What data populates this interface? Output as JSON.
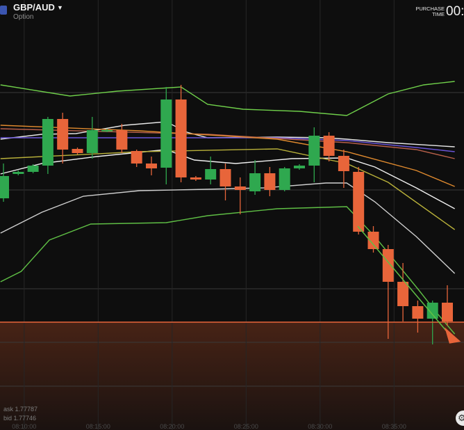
{
  "header": {
    "pair": "GBP/AUD",
    "pair_icon": "caret-down-icon",
    "flag_icon": "gb-au-flag-icon",
    "subtitle": "Option",
    "purchase_time_label_line1": "PURCHASE",
    "purchase_time_label_line2": "TIME",
    "purchase_time_value": "00:"
  },
  "quotes": {
    "ask": "ask 1.77787",
    "bid": "bid 1.77746"
  },
  "time_axis": [
    "08:10:00",
    "08:15:00",
    "08:20:00",
    "08:25:00",
    "08:30:00",
    "08:35:00"
  ],
  "colors": {
    "bull": "#2fa84f",
    "bear": "#e8653a",
    "current_price_line": "#e8653a",
    "background": "#0e0e0e"
  },
  "settings_icon": "gear-icon",
  "chart_data": {
    "type": "candlestick",
    "current_price": 1.77746,
    "ylim": [
      1.77591,
      1.78209
    ],
    "candles": [
      {
        "o": 1.77924,
        "c": 1.77956,
        "h": 1.77974,
        "l": 1.77919
      },
      {
        "o": 1.77959,
        "c": 1.77962,
        "h": 1.77964,
        "l": 1.77957
      },
      {
        "o": 1.77962,
        "c": 1.77971,
        "h": 1.77973,
        "l": 1.7796
      },
      {
        "o": 1.77971,
        "c": 1.78038,
        "h": 1.78041,
        "l": 1.77959
      },
      {
        "o": 1.78038,
        "c": 1.77994,
        "h": 1.78047,
        "l": 1.77974
      },
      {
        "o": 1.77995,
        "c": 1.77989,
        "h": 1.77997,
        "l": 1.77987
      },
      {
        "o": 1.77989,
        "c": 1.78022,
        "h": 1.78041,
        "l": 1.77981
      },
      {
        "o": 1.78021,
        "c": 1.78022,
        "h": 1.78024,
        "l": 1.78019
      },
      {
        "o": 1.78022,
        "c": 1.77994,
        "h": 1.78031,
        "l": 1.77989
      },
      {
        "o": 1.77992,
        "c": 1.77974,
        "h": 1.77994,
        "l": 1.77969
      },
      {
        "o": 1.77974,
        "c": 1.77967,
        "h": 1.77984,
        "l": 1.77957
      },
      {
        "o": 1.77968,
        "c": 1.78066,
        "h": 1.78084,
        "l": 1.77944
      },
      {
        "o": 1.78066,
        "c": 1.77954,
        "h": 1.78087,
        "l": 1.77947
      },
      {
        "o": 1.77954,
        "c": 1.77951,
        "h": 1.77956,
        "l": 1.77949
      },
      {
        "o": 1.77951,
        "c": 1.77966,
        "h": 1.77984,
        "l": 1.77944
      },
      {
        "o": 1.77966,
        "c": 1.77941,
        "h": 1.77974,
        "l": 1.77921
      },
      {
        "o": 1.77941,
        "c": 1.77936,
        "h": 1.77954,
        "l": 1.77901
      },
      {
        "o": 1.77934,
        "c": 1.7796,
        "h": 1.77979,
        "l": 1.77929
      },
      {
        "o": 1.7796,
        "c": 1.77936,
        "h": 1.77969,
        "l": 1.77927
      },
      {
        "o": 1.77936,
        "c": 1.77967,
        "h": 1.77969,
        "l": 1.77934
      },
      {
        "o": 1.77967,
        "c": 1.77971,
        "h": 1.77973,
        "l": 1.77965
      },
      {
        "o": 1.77971,
        "c": 1.78014,
        "h": 1.78026,
        "l": 1.77947
      },
      {
        "o": 1.78014,
        "c": 1.77985,
        "h": 1.78019,
        "l": 1.77977
      },
      {
        "o": 1.77985,
        "c": 1.77963,
        "h": 1.77994,
        "l": 1.77939
      },
      {
        "o": 1.77962,
        "c": 1.77876,
        "h": 1.77969,
        "l": 1.77872
      },
      {
        "o": 1.77876,
        "c": 1.77851,
        "h": 1.77884,
        "l": 1.77846
      },
      {
        "o": 1.77851,
        "c": 1.77804,
        "h": 1.77857,
        "l": 1.77722
      },
      {
        "o": 1.77804,
        "c": 1.77769,
        "h": 1.77831,
        "l": 1.77747
      },
      {
        "o": 1.77769,
        "c": 1.77751,
        "h": 1.77777,
        "l": 1.77731
      },
      {
        "o": 1.77751,
        "c": 1.77774,
        "h": 1.77777,
        "l": 1.77714
      },
      {
        "o": 1.77774,
        "c": 1.77747,
        "h": 1.77799,
        "l": 1.77741
      }
    ],
    "indicators": [
      {
        "color": "#6fcf4a",
        "points": [
          [
            -0.2,
            1.78087
          ],
          [
            4.5,
            1.78071
          ],
          [
            7.7,
            1.78078
          ],
          [
            12,
            1.78084
          ],
          [
            13.8,
            1.78059
          ],
          [
            16.2,
            1.78052
          ],
          [
            20,
            1.78049
          ],
          [
            23.2,
            1.78043
          ],
          [
            26,
            1.78074
          ],
          [
            28.4,
            1.78087
          ],
          [
            30.5,
            1.78092
          ]
        ]
      },
      {
        "color": "#e6e6e6",
        "points": [
          [
            -0.2,
            1.78009
          ],
          [
            2.6,
            1.78016
          ],
          [
            4.9,
            1.78017
          ],
          [
            8.2,
            1.78029
          ],
          [
            11,
            1.78034
          ],
          [
            12.4,
            1.78019
          ],
          [
            13.8,
            1.78011
          ],
          [
            18.5,
            1.78012
          ],
          [
            21.8,
            1.78011
          ],
          [
            23.2,
            1.78009
          ],
          [
            26,
            1.78004
          ],
          [
            30.5,
            1.77998
          ]
        ]
      },
      {
        "color": "#6a55d8",
        "points": [
          [
            -0.2,
            1.78011
          ],
          [
            18.5,
            1.78011
          ],
          [
            23.2,
            1.78007
          ],
          [
            27.9,
            1.77997
          ],
          [
            30.5,
            1.77991
          ]
        ]
      },
      {
        "color": "#b8604a",
        "points": [
          [
            -0.2,
            1.78024
          ],
          [
            13.8,
            1.78016
          ],
          [
            23.2,
            1.78004
          ],
          [
            27.9,
            1.77994
          ],
          [
            30.5,
            1.77981
          ]
        ]
      },
      {
        "color": "#e08a2e",
        "points": [
          [
            -0.2,
            1.78029
          ],
          [
            9.2,
            1.78021
          ],
          [
            18.5,
            1.78009
          ],
          [
            23.2,
            1.77991
          ],
          [
            27.9,
            1.77964
          ],
          [
            30.5,
            1.77941
          ]
        ]
      },
      {
        "color": "#f0f0f0",
        "points": [
          [
            -0.2,
            1.77959
          ],
          [
            2.6,
            1.77974
          ],
          [
            6.3,
            1.77984
          ],
          [
            11,
            1.77994
          ],
          [
            12.9,
            1.77979
          ],
          [
            15.7,
            1.77974
          ],
          [
            19.5,
            1.77981
          ],
          [
            23.2,
            1.77982
          ],
          [
            25.1,
            1.77969
          ],
          [
            27.9,
            1.77939
          ],
          [
            30.5,
            1.77909
          ]
        ]
      },
      {
        "color": "#b9b13a",
        "points": [
          [
            -0.2,
            1.77981
          ],
          [
            9.2,
            1.77991
          ],
          [
            18.5,
            1.77995
          ],
          [
            23.2,
            1.77974
          ],
          [
            26,
            1.77947
          ],
          [
            30.5,
            1.77879
          ]
        ]
      },
      {
        "color": "#d0d0d0",
        "points": [
          [
            -0.2,
            1.77874
          ],
          [
            2.6,
            1.77904
          ],
          [
            5.4,
            1.77927
          ],
          [
            9.2,
            1.77935
          ],
          [
            13.8,
            1.77937
          ],
          [
            17.6,
            1.77939
          ],
          [
            21.8,
            1.77946
          ],
          [
            23.2,
            1.77946
          ],
          [
            25.1,
            1.77919
          ],
          [
            27.9,
            1.77869
          ],
          [
            30.5,
            1.77816
          ]
        ]
      },
      {
        "color": "#5fbf45",
        "points": [
          [
            -0.2,
            1.77804
          ],
          [
            1.2,
            1.77819
          ],
          [
            3.1,
            1.77864
          ],
          [
            5.9,
            1.77887
          ],
          [
            11,
            1.77889
          ],
          [
            13.8,
            1.77899
          ],
          [
            18.5,
            1.77909
          ],
          [
            23.2,
            1.77912
          ],
          [
            25.1,
            1.77869
          ],
          [
            28,
            1.77794
          ],
          [
            29.3,
            1.77759
          ],
          [
            30.5,
            1.77729
          ]
        ]
      }
    ]
  }
}
